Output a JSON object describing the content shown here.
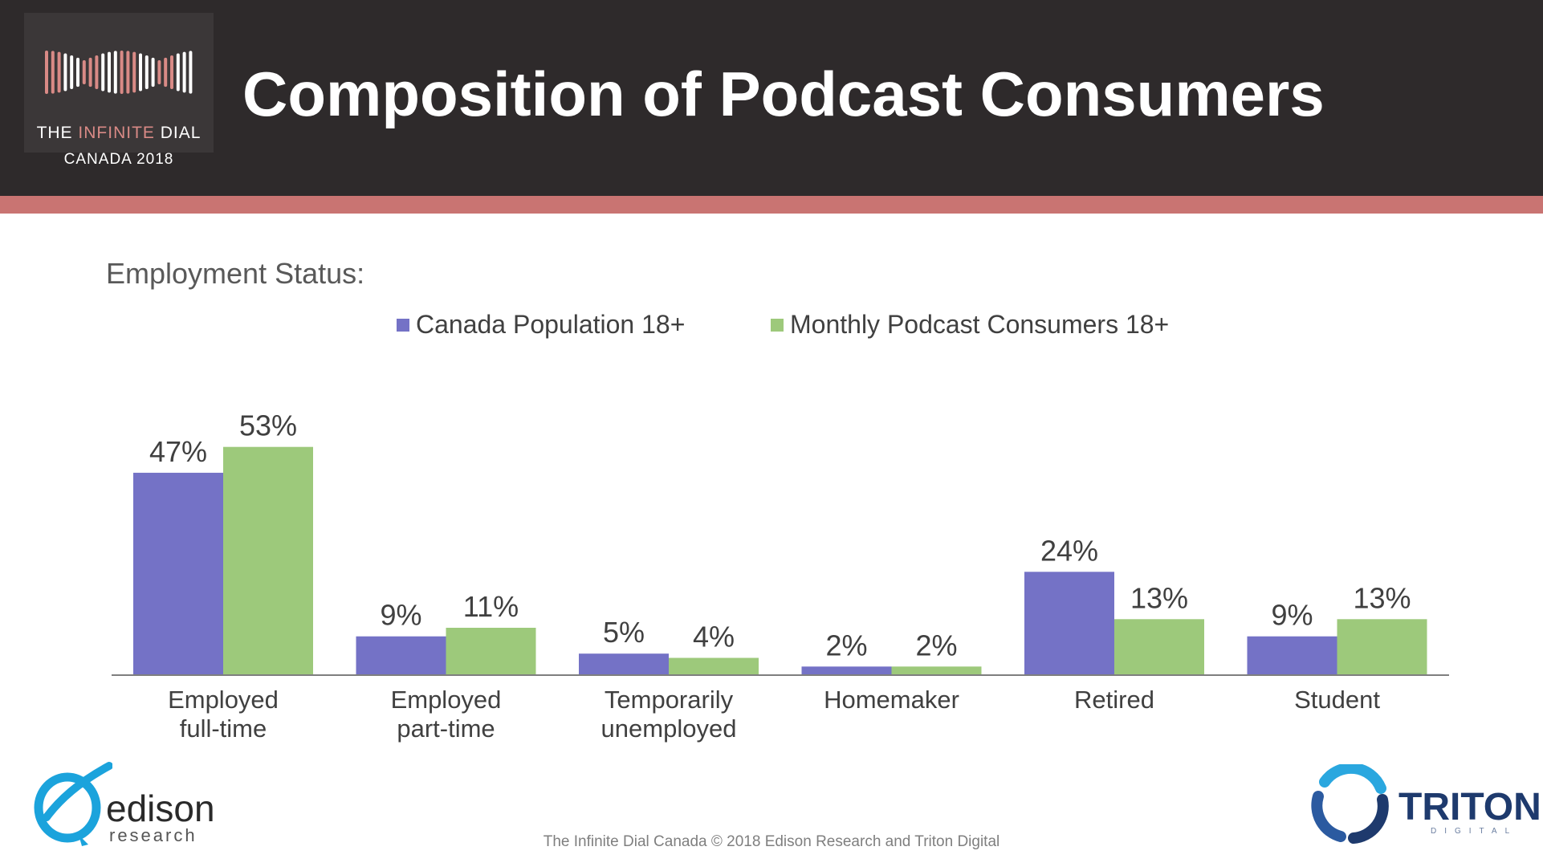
{
  "header": {
    "logo_line1_prefix": "THE ",
    "logo_line1_accent": "INFINITE",
    "logo_line1_suffix": " DIAL",
    "logo_line2": "CANADA 2018",
    "title": "Composition of Podcast Consumers"
  },
  "subtitle": "Employment Status:",
  "colors": {
    "header_bg": "#2e2a2b",
    "stripe": "#c97472",
    "series_population": "#7472c6",
    "series_podcast": "#9dc97b"
  },
  "chart_data": {
    "type": "bar",
    "title": "",
    "xlabel": "",
    "ylabel": "",
    "ylim": [
      0,
      60
    ],
    "grid": false,
    "legend_position": "top-center",
    "categories": [
      [
        "Employed",
        "full-time"
      ],
      [
        "Employed",
        "part-time"
      ],
      [
        "Temporarily",
        "unemployed"
      ],
      [
        "Homemaker"
      ],
      [
        "Retired"
      ],
      [
        "Student"
      ]
    ],
    "series": [
      {
        "name": "Canada Population 18+",
        "values": [
          47,
          9,
          5,
          2,
          24,
          9
        ],
        "labels": [
          "47%",
          "9%",
          "5%",
          "2%",
          "24%",
          "9%"
        ]
      },
      {
        "name": "Monthly Podcast Consumers 18+",
        "values": [
          53,
          11,
          4,
          2,
          13,
          13
        ],
        "labels": [
          "53%",
          "11%",
          "4%",
          "2%",
          "13%",
          "13%"
        ]
      }
    ]
  },
  "footer": {
    "text": "The Infinite Dial Canada  © 2018 Edison Research and Triton Digital",
    "edison_name": "edison",
    "edison_sub": "research",
    "triton_name": "TRITON",
    "triton_sub": "DIGITAL"
  }
}
